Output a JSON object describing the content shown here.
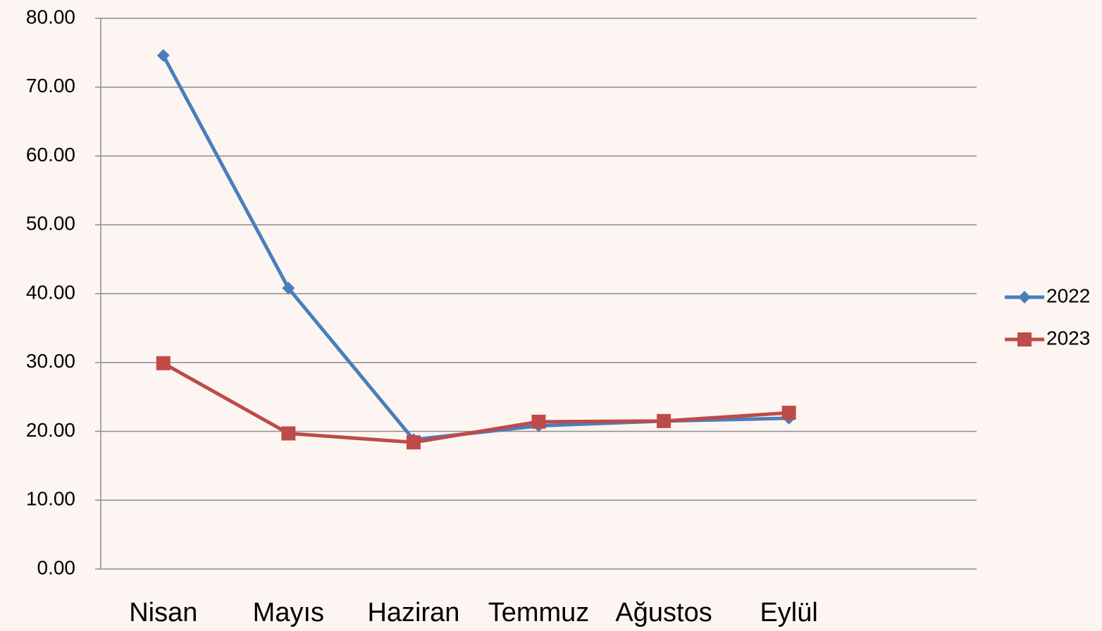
{
  "chart_data": {
    "type": "line",
    "categories": [
      "Nisan",
      "Mayıs",
      "Haziran",
      "Temmuz",
      "Ağustos",
      "Eylül",
      null
    ],
    "series": [
      {
        "name": "2022",
        "color": "#4a7ebb",
        "marker": "diamond",
        "values": [
          74.6,
          40.8,
          18.8,
          20.8,
          21.5,
          21.9,
          null
        ]
      },
      {
        "name": "2023",
        "color": "#be4b48",
        "marker": "square",
        "values": [
          29.9,
          19.7,
          18.4,
          21.4,
          21.5,
          22.7,
          null
        ]
      }
    ],
    "ylim": [
      0,
      80
    ],
    "yticks": [
      {
        "value": 0,
        "label": "0.00"
      },
      {
        "value": 10,
        "label": "10.00"
      },
      {
        "value": 20,
        "label": "20.00"
      },
      {
        "value": 30,
        "label": "30.00"
      },
      {
        "value": 40,
        "label": "40.00"
      },
      {
        "value": 50,
        "label": "50.00"
      },
      {
        "value": 60,
        "label": "60.00"
      },
      {
        "value": 70,
        "label": "70.00"
      },
      {
        "value": 80,
        "label": "80.00"
      }
    ],
    "grid": true,
    "legend": "right"
  }
}
